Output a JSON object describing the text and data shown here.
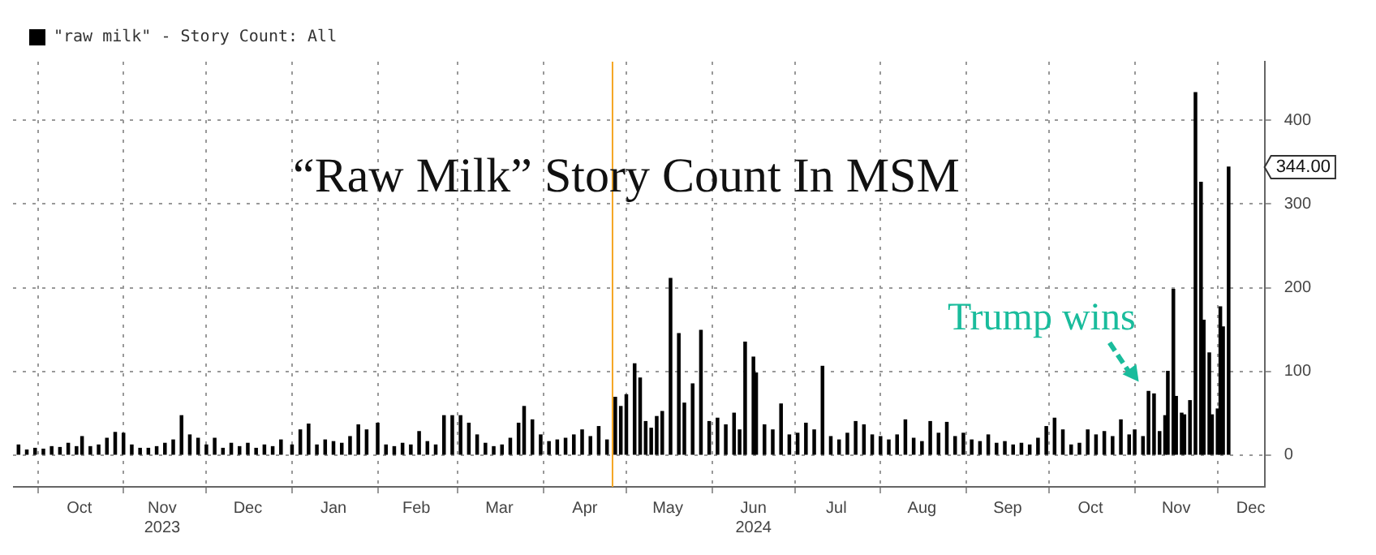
{
  "chart_data": {
    "type": "bar",
    "title": "“Raw Milk” Story Count In MSM",
    "x": [
      "2023-09-24",
      "2023-09-27",
      "2023-09-30",
      "2023-10-03",
      "2023-10-06",
      "2023-10-09",
      "2023-10-12",
      "2023-10-15",
      "2023-10-17",
      "2023-10-20",
      "2023-10-23",
      "2023-10-26",
      "2023-10-29",
      "2023-11-01",
      "2023-11-04",
      "2023-11-07",
      "2023-11-10",
      "2023-11-13",
      "2023-11-16",
      "2023-11-19",
      "2023-11-22",
      "2023-11-25",
      "2023-11-28",
      "2023-12-01",
      "2023-12-04",
      "2023-12-07",
      "2023-12-10",
      "2023-12-13",
      "2023-12-16",
      "2023-12-19",
      "2023-12-22",
      "2023-12-25",
      "2023-12-28",
      "2024-01-01",
      "2024-01-04",
      "2024-01-07",
      "2024-01-10",
      "2024-01-13",
      "2024-01-16",
      "2024-01-19",
      "2024-01-22",
      "2024-01-25",
      "2024-01-28",
      "2024-02-01",
      "2024-02-04",
      "2024-02-07",
      "2024-02-10",
      "2024-02-13",
      "2024-02-16",
      "2024-02-19",
      "2024-02-22",
      "2024-02-25",
      "2024-02-28",
      "2024-03-02",
      "2024-03-05",
      "2024-03-08",
      "2024-03-11",
      "2024-03-14",
      "2024-03-17",
      "2024-03-20",
      "2024-03-23",
      "2024-03-25",
      "2024-03-28",
      "2024-03-31",
      "2024-04-03",
      "2024-04-06",
      "2024-04-09",
      "2024-04-12",
      "2024-04-15",
      "2024-04-18",
      "2024-04-21",
      "2024-04-24",
      "2024-04-27",
      "2024-04-29",
      "2024-05-01",
      "2024-05-04",
      "2024-05-06",
      "2024-05-08",
      "2024-05-10",
      "2024-05-12",
      "2024-05-14",
      "2024-05-17",
      "2024-05-20",
      "2024-05-22",
      "2024-05-25",
      "2024-05-28",
      "2024-05-31",
      "2024-06-03",
      "2024-06-06",
      "2024-06-09",
      "2024-06-11",
      "2024-06-13",
      "2024-06-16",
      "2024-06-17",
      "2024-06-20",
      "2024-06-23",
      "2024-06-26",
      "2024-06-29",
      "2024-07-02",
      "2024-07-05",
      "2024-07-08",
      "2024-07-11",
      "2024-07-14",
      "2024-07-17",
      "2024-07-20",
      "2024-07-23",
      "2024-07-26",
      "2024-07-29",
      "2024-08-01",
      "2024-08-04",
      "2024-08-07",
      "2024-08-10",
      "2024-08-13",
      "2024-08-16",
      "2024-08-19",
      "2024-08-22",
      "2024-08-25",
      "2024-08-28",
      "2024-08-31",
      "2024-09-03",
      "2024-09-06",
      "2024-09-09",
      "2024-09-12",
      "2024-09-15",
      "2024-09-18",
      "2024-09-21",
      "2024-09-24",
      "2024-09-27",
      "2024-09-30",
      "2024-10-03",
      "2024-10-06",
      "2024-10-09",
      "2024-10-12",
      "2024-10-15",
      "2024-10-18",
      "2024-10-21",
      "2024-10-24",
      "2024-10-27",
      "2024-10-30",
      "2024-11-01",
      "2024-11-04",
      "2024-11-06",
      "2024-11-08",
      "2024-11-10",
      "2024-11-12",
      "2024-11-13",
      "2024-11-15",
      "2024-11-16",
      "2024-11-18",
      "2024-11-19",
      "2024-11-21",
      "2024-11-23",
      "2024-11-25",
      "2024-11-26",
      "2024-11-28",
      "2024-11-29",
      "2024-12-01",
      "2024-12-02",
      "2024-12-03",
      "2024-12-05"
    ],
    "series": [
      {
        "name": "\"raw milk\" - Story Count: All",
        "color": "#000000",
        "values": [
          12,
          6,
          8,
          7,
          10,
          9,
          14,
          10,
          22,
          10,
          12,
          20,
          27,
          26,
          12,
          8,
          8,
          10,
          14,
          18,
          47,
          24,
          20,
          12,
          20,
          8,
          14,
          10,
          14,
          8,
          12,
          10,
          18,
          12,
          30,
          37,
          12,
          18,
          16,
          14,
          22,
          36,
          30,
          38,
          12,
          10,
          14,
          12,
          28,
          16,
          12,
          47,
          47,
          47,
          38,
          24,
          14,
          10,
          12,
          20,
          38,
          58,
          42,
          24,
          16,
          18,
          20,
          24,
          30,
          22,
          34,
          18,
          69,
          58,
          72,
          109,
          92,
          40,
          32,
          46,
          52,
          211,
          145,
          62,
          85,
          149,
          40,
          44,
          36,
          50,
          30,
          135,
          117,
          98,
          36,
          30,
          61,
          24,
          26,
          38,
          30,
          106,
          22,
          18,
          26,
          40,
          36,
          24,
          22,
          18,
          24,
          42,
          20,
          16,
          40,
          26,
          39,
          22,
          26,
          18,
          16,
          24,
          14,
          16,
          12,
          14,
          12,
          20,
          34,
          44,
          30,
          12,
          14,
          30,
          24,
          28,
          22,
          42,
          24,
          30,
          22,
          76,
          73,
          28,
          47,
          100,
          198,
          70,
          50,
          48,
          65,
          433,
          326,
          161,
          122,
          48,
          55,
          177,
          153,
          344
        ]
      }
    ],
    "xlim": [
      "2023-09-22",
      "2024-12-18"
    ],
    "xticks": [
      {
        "value": "2023-10-01",
        "label": null
      },
      {
        "value": "2023-10-16",
        "label": "Oct"
      },
      {
        "value": "2023-11-01",
        "label": null
      },
      {
        "value": "2023-11-15",
        "label": "Nov\n2023"
      },
      {
        "value": "2023-12-01",
        "label": null
      },
      {
        "value": "2023-12-16",
        "label": "Dec"
      },
      {
        "value": "2024-01-01",
        "label": null
      },
      {
        "value": "2024-01-16",
        "label": "Jan"
      },
      {
        "value": "2024-02-01",
        "label": null
      },
      {
        "value": "2024-02-15",
        "label": "Feb"
      },
      {
        "value": "2024-03-01",
        "label": null
      },
      {
        "value": "2024-03-16",
        "label": "Mar"
      },
      {
        "value": "2024-04-01",
        "label": null
      },
      {
        "value": "2024-04-16",
        "label": "Apr"
      },
      {
        "value": "2024-05-01",
        "label": null
      },
      {
        "value": "2024-05-16",
        "label": "May"
      },
      {
        "value": "2024-06-01",
        "label": null
      },
      {
        "value": "2024-06-16",
        "label": "Jun\n2024"
      },
      {
        "value": "2024-07-01",
        "label": null
      },
      {
        "value": "2024-07-16",
        "label": "Jul"
      },
      {
        "value": "2024-08-01",
        "label": null
      },
      {
        "value": "2024-08-16",
        "label": "Aug"
      },
      {
        "value": "2024-09-01",
        "label": null
      },
      {
        "value": "2024-09-16",
        "label": "Sep"
      },
      {
        "value": "2024-10-01",
        "label": null
      },
      {
        "value": "2024-10-16",
        "label": "Oct"
      },
      {
        "value": "2024-11-01",
        "label": null
      },
      {
        "value": "2024-11-16",
        "label": "Nov"
      },
      {
        "value": "2024-12-01",
        "label": null
      },
      {
        "value": "2024-12-13",
        "label": "Dec"
      }
    ],
    "ylim": [
      -38,
      470
    ],
    "yticks": [
      0,
      100,
      200,
      300,
      400
    ],
    "ref_lines": [
      {
        "axis": "x",
        "value": "2024-04-26",
        "color": "#f5a623"
      }
    ],
    "annotations": [
      {
        "text": "Trump wins",
        "x": "2024-11-06",
        "y": 76
      },
      {
        "text": "344.00",
        "x": "2024-12-05",
        "y": 344
      }
    ],
    "grid": true,
    "legend": "top left"
  }
}
